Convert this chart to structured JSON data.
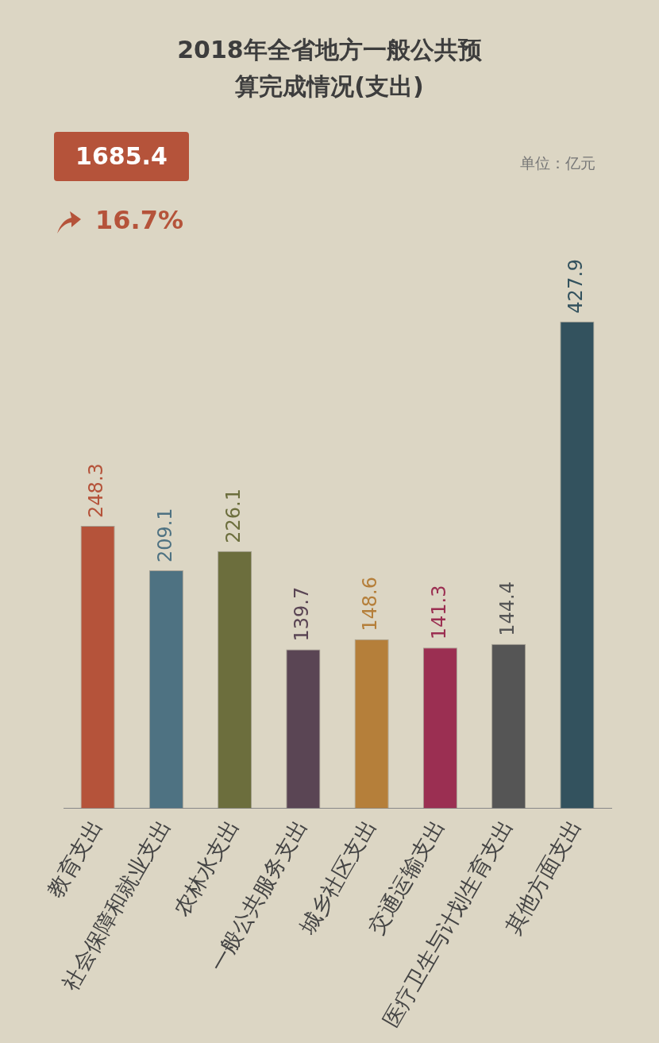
{
  "chart_data": {
    "type": "bar",
    "title": "2018年全省地方一般公共预算完成情况(支出)",
    "annotations": [
      "1685.4",
      "16.7%",
      "单位：亿元"
    ],
    "categories": [
      "教育支出",
      "社会保障和就业支出",
      "农林水支出",
      "一般公共服务支出",
      "城乡社区支出",
      "交通运输支出",
      "医疗卫生与计划生育支出",
      "其他方面支出"
    ],
    "values": [
      248.3,
      209.1,
      226.1,
      139.7,
      148.6,
      141.3,
      144.4,
      427.9
    ],
    "colors": [
      "#b5533a",
      "#4e7282",
      "#6c6e3d",
      "#5a4554",
      "#b57f3a",
      "#9b2f52",
      "#555555",
      "#33525e"
    ],
    "data_labels": true,
    "grid": false,
    "legend": false
  }
}
